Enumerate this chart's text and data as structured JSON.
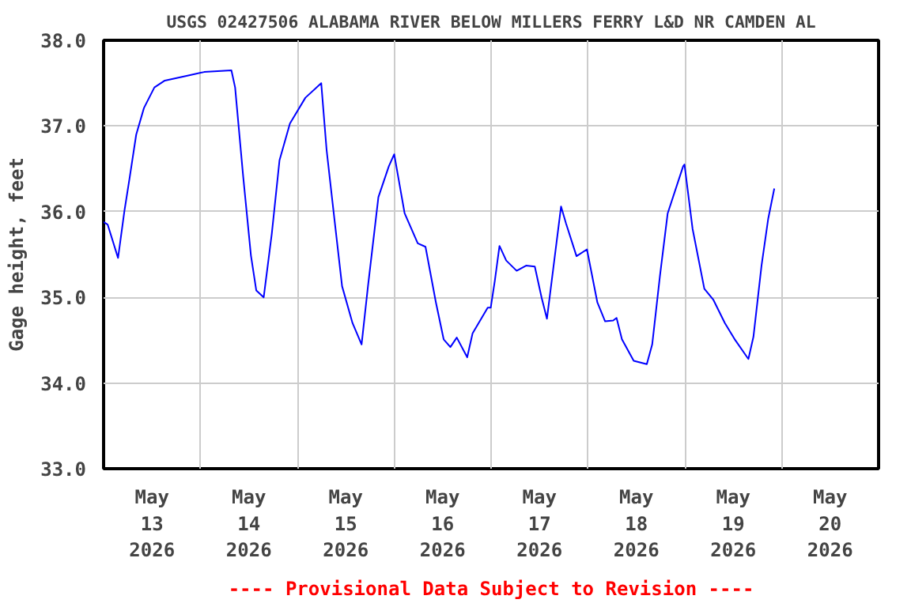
{
  "chart_data": {
    "type": "line",
    "title": "USGS 02427506 ALABAMA RIVER BELOW MILLERS FERRY L&D NR CAMDEN AL",
    "ylabel": "Gage height, feet",
    "annotations": [
      "---- Provisional Data Subject to Revision ----"
    ],
    "series": [
      {
        "color": "#0000ff",
        "x": [
          "2026-05-13T00:00",
          "2026-05-13T01:00",
          "2026-05-13T03:35",
          "2026-05-13T05:10",
          "2026-05-13T06:30",
          "2026-05-13T08:05",
          "2026-05-13T10:00",
          "2026-05-13T12:35",
          "2026-05-13T15:10",
          "2026-05-13T21:00",
          "2026-05-14T00:55",
          "2026-05-14T07:40",
          "2026-05-14T08:35",
          "2026-05-14T10:35",
          "2026-05-14T12:30",
          "2026-05-14T13:50",
          "2026-05-14T15:40",
          "2026-05-14T17:40",
          "2026-05-14T19:35",
          "2026-05-14T22:10",
          "2026-05-15T02:00",
          "2026-05-15T05:55",
          "2026-05-15T07:15",
          "2026-05-15T09:10",
          "2026-05-15T11:05",
          "2026-05-15T13:40",
          "2026-05-15T15:55",
          "2026-05-15T17:30",
          "2026-05-15T20:05",
          "2026-05-15T22:40",
          "2026-05-16T00:00",
          "2026-05-16T02:35",
          "2026-05-16T05:50",
          "2026-05-16T07:45",
          "2026-05-16T10:20",
          "2026-05-16T12:15",
          "2026-05-16T13:55",
          "2026-05-16T15:30",
          "2026-05-16T18:05",
          "2026-05-16T19:25",
          "2026-05-16T23:10",
          "2026-05-16T23:55",
          "2026-05-17T00:55",
          "2026-05-17T02:05",
          "2026-05-17T03:45",
          "2026-05-17T06:20",
          "2026-05-17T08:40",
          "2026-05-17T10:50",
          "2026-05-17T12:30",
          "2026-05-17T13:50",
          "2026-05-17T15:20",
          "2026-05-17T17:20",
          "2026-05-17T18:35",
          "2026-05-17T21:10",
          "2026-05-17T23:45",
          "2026-05-18T02:20",
          "2026-05-18T04:15",
          "2026-05-18T06:15",
          "2026-05-18T07:05",
          "2026-05-18T08:25",
          "2026-05-18T11:20",
          "2026-05-18T14:35",
          "2026-05-18T15:55",
          "2026-05-18T17:50",
          "2026-05-18T19:45",
          "2026-05-18T23:35",
          "2026-05-18T23:55",
          "2026-05-19T01:55",
          "2026-05-19T04:50",
          "2026-05-19T07:05",
          "2026-05-19T09:55",
          "2026-05-19T12:30",
          "2026-05-19T15:45",
          "2026-05-19T17:00",
          "2026-05-19T19:00",
          "2026-05-19T20:40",
          "2026-05-19T22:10"
        ],
        "values": [
          35.88,
          35.85,
          35.46,
          36.01,
          36.41,
          36.9,
          37.21,
          37.45,
          37.53,
          37.59,
          37.63,
          37.65,
          37.45,
          36.41,
          35.49,
          35.08,
          35.0,
          35.74,
          36.6,
          37.03,
          37.33,
          37.5,
          36.72,
          35.92,
          35.13,
          34.7,
          34.45,
          35.13,
          36.17,
          36.53,
          36.67,
          35.98,
          35.63,
          35.59,
          34.94,
          34.51,
          34.42,
          34.53,
          34.3,
          34.58,
          34.88,
          34.88,
          35.19,
          35.6,
          35.43,
          35.31,
          35.37,
          35.36,
          35.0,
          34.75,
          35.31,
          36.06,
          35.86,
          35.48,
          35.56,
          34.94,
          34.72,
          34.73,
          34.76,
          34.51,
          34.26,
          34.22,
          34.45,
          35.25,
          35.98,
          36.53,
          36.55,
          35.8,
          35.1,
          34.97,
          34.7,
          34.5,
          34.28,
          34.54,
          35.37,
          35.92,
          36.27
        ]
      }
    ],
    "xlim": [
      "2026-05-13T00:00",
      "2026-05-21T00:00"
    ],
    "xticks": [
      {
        "value": "2026-05-13T00:00",
        "label": null
      },
      {
        "value": "2026-05-13T12:00",
        "label": "May\n13\n2026"
      },
      {
        "value": "2026-05-14T00:00",
        "label": null
      },
      {
        "value": "2026-05-14T12:00",
        "label": "May\n14\n2026"
      },
      {
        "value": "2026-05-15T00:00",
        "label": null
      },
      {
        "value": "2026-05-15T12:00",
        "label": "May\n15\n2026"
      },
      {
        "value": "2026-05-16T00:00",
        "label": null
      },
      {
        "value": "2026-05-16T12:00",
        "label": "May\n16\n2026"
      },
      {
        "value": "2026-05-17T00:00",
        "label": null
      },
      {
        "value": "2026-05-17T12:00",
        "label": "May\n17\n2026"
      },
      {
        "value": "2026-05-18T00:00",
        "label": null
      },
      {
        "value": "2026-05-18T12:00",
        "label": "May\n18\n2026"
      },
      {
        "value": "2026-05-19T00:00",
        "label": null
      },
      {
        "value": "2026-05-19T12:00",
        "label": "May\n19\n2026"
      },
      {
        "value": "2026-05-20T00:00",
        "label": null
      },
      {
        "value": "2026-05-20T12:00",
        "label": "May\n20\n2026"
      },
      {
        "value": "2026-05-21T00:00",
        "label": null
      }
    ],
    "ylim": [
      33.0,
      38.0
    ],
    "yticks": [
      {
        "value": 33,
        "label": "33.0"
      },
      {
        "value": 34,
        "label": "34.0"
      },
      {
        "value": 35,
        "label": "35.0"
      },
      {
        "value": 36,
        "label": "36.0"
      },
      {
        "value": 37,
        "label": "37.0"
      },
      {
        "value": 38,
        "label": "38.0"
      }
    ],
    "grid": true,
    "marker": "none",
    "line_style": "solid"
  }
}
